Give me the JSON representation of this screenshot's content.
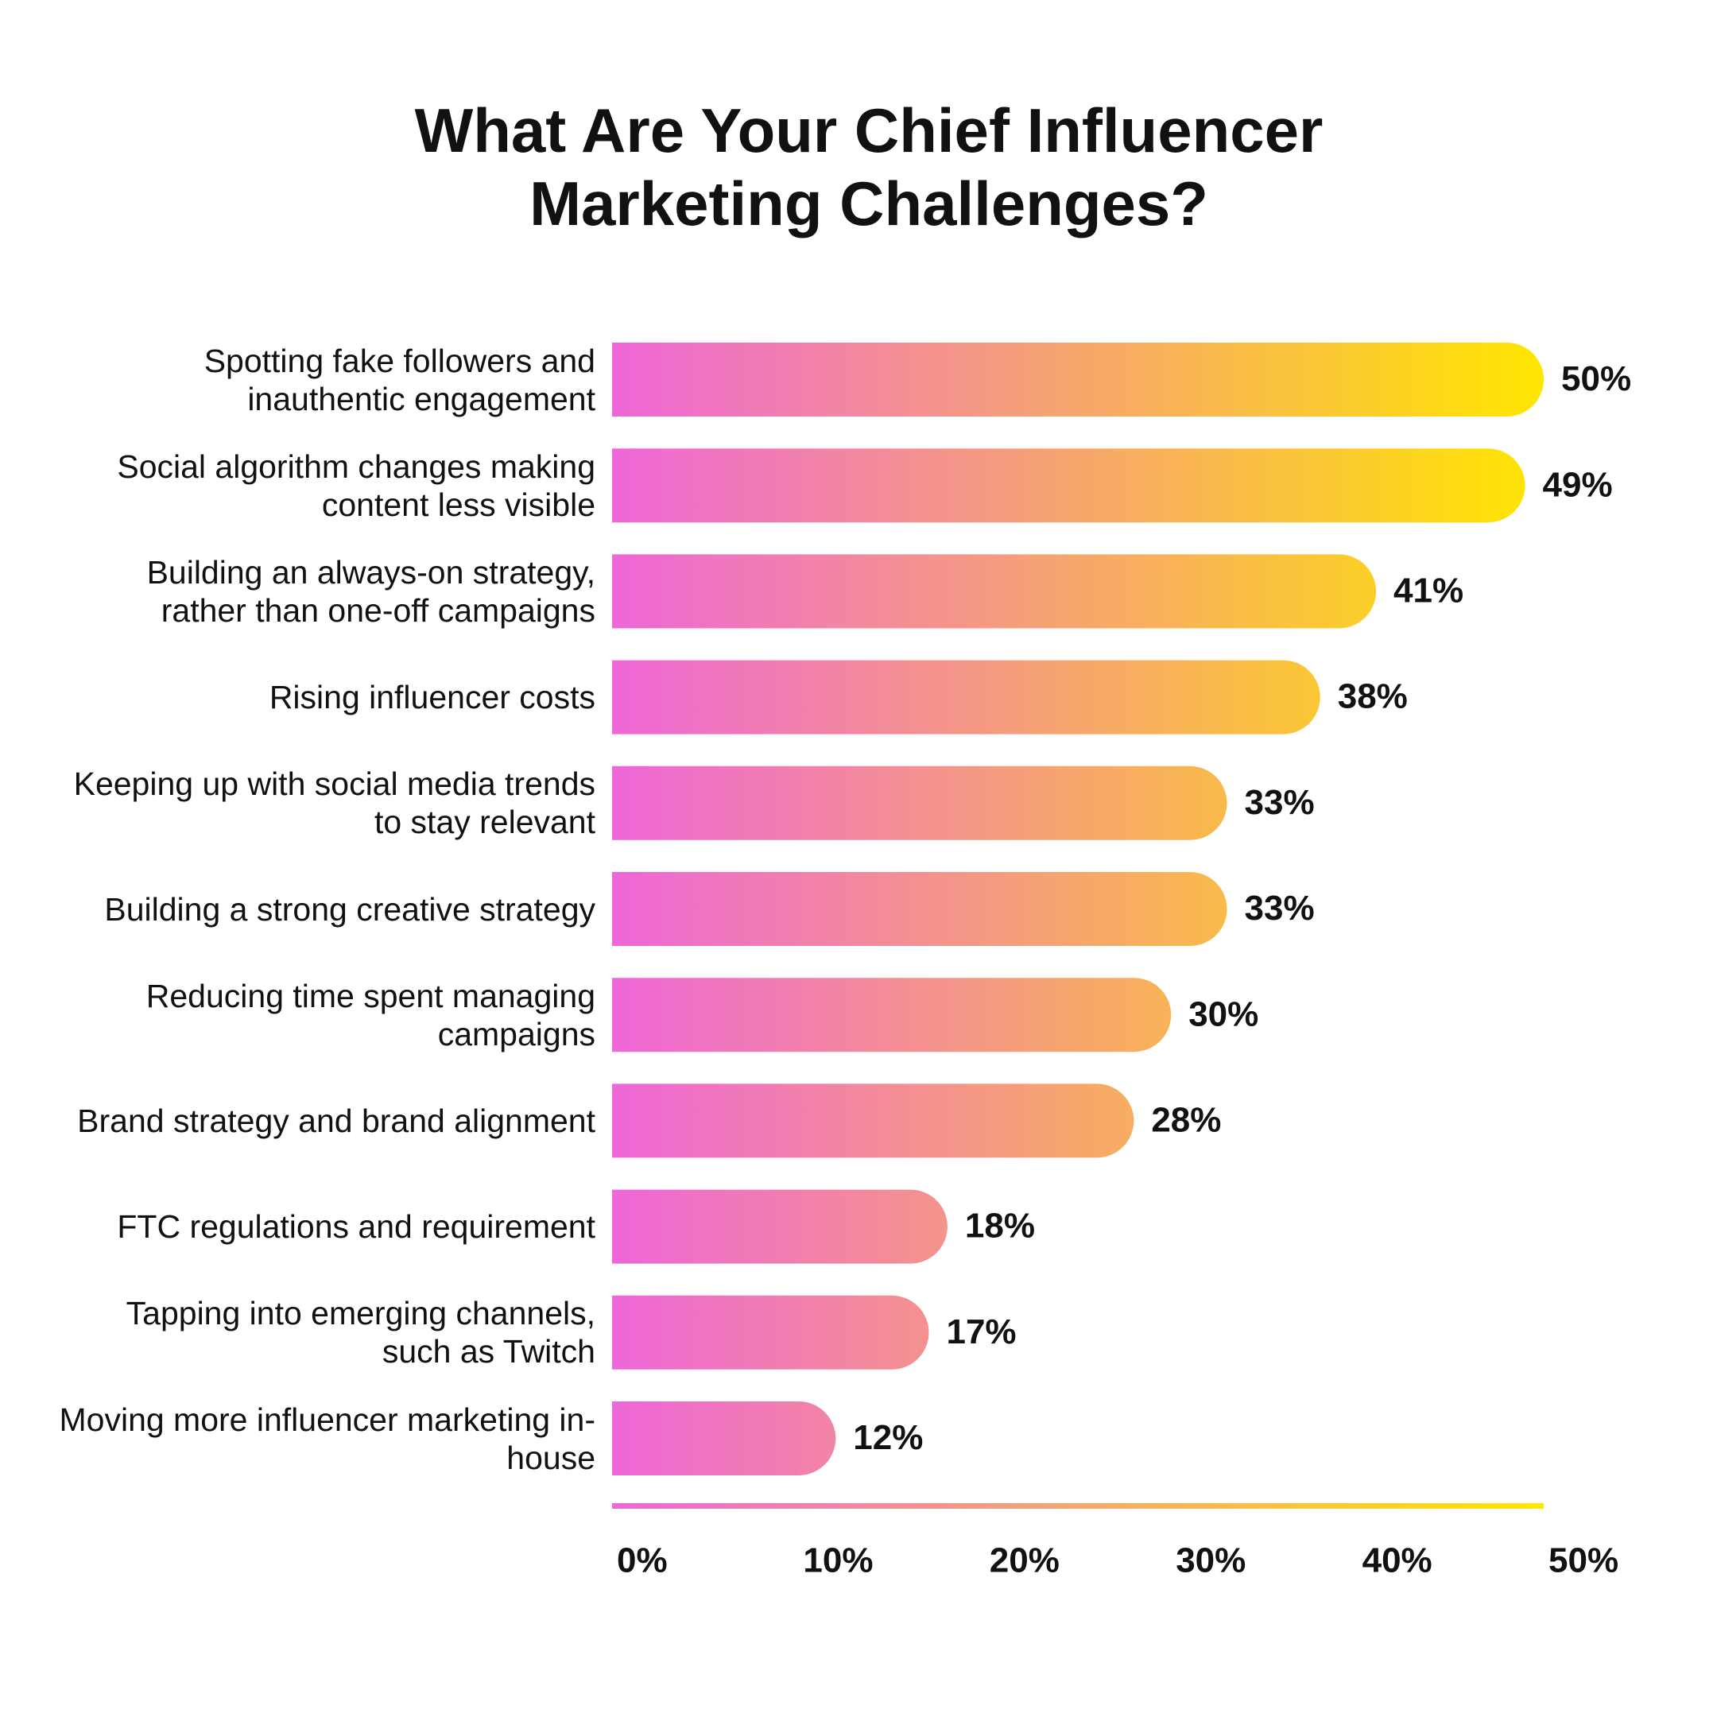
{
  "chart_data": {
    "type": "bar",
    "orientation": "horizontal",
    "title": "What Are Your Chief Influencer Marketing Challenges?",
    "categories": [
      "Spotting fake followers and inauthentic engagement",
      "Social algorithm changes making content less visible",
      "Building an always-on strategy, rather than one-off campaigns",
      "Rising influencer costs",
      "Keeping up with social media trends to stay relevant",
      "Building a strong creative strategy",
      "Reducing time spent managing campaigns",
      "Brand strategy and brand alignment",
      "FTC regulations and requirement",
      "Tapping into emerging channels, such as Twitch",
      "Moving more influencer marketing in-house"
    ],
    "values": [
      50,
      49,
      41,
      38,
      33,
      33,
      30,
      28,
      18,
      17,
      12
    ],
    "value_labels": [
      "50%",
      "49%",
      "41%",
      "38%",
      "33%",
      "33%",
      "30%",
      "28%",
      "18%",
      "17%",
      "12%"
    ],
    "gradient": [
      "#ee66d8",
      "#ffe600"
    ],
    "xlim": [
      0,
      50
    ],
    "xticks": [
      {
        "value": 0,
        "label": "0%"
      },
      {
        "value": 10,
        "label": "10%"
      },
      {
        "value": 20,
        "label": "20%"
      },
      {
        "value": 30,
        "label": "30%"
      },
      {
        "value": 40,
        "label": "40%"
      },
      {
        "value": 50,
        "label": "50%"
      }
    ],
    "grid": false
  }
}
